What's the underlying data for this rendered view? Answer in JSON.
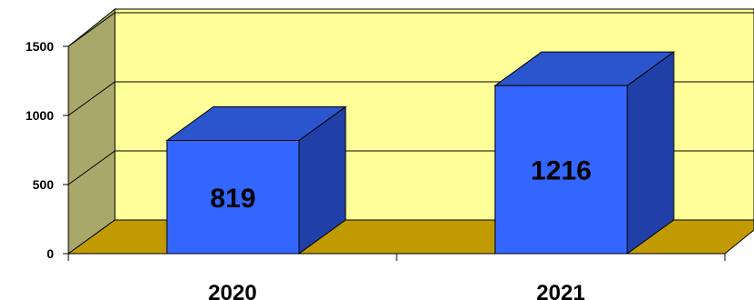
{
  "chart_data": {
    "type": "bar",
    "categories": [
      "2020",
      "2021"
    ],
    "values": [
      819,
      1216
    ],
    "data_labels": [
      "819",
      "1216"
    ],
    "ylim": [
      0,
      1500
    ],
    "y_ticks": [
      "0",
      "500",
      "1000",
      "1500"
    ],
    "title": "",
    "xlabel": "",
    "ylabel": "",
    "grid": true,
    "legend": "none",
    "style": "3d-box",
    "colors": {
      "bar_front": "#3366ff",
      "bar_top": "#2a55cc",
      "bar_side": "#2040a8",
      "back_wall": "#ffff99",
      "side_wall": "#a8a86a",
      "floor": "#c09a00",
      "gridline": "#000000"
    }
  }
}
